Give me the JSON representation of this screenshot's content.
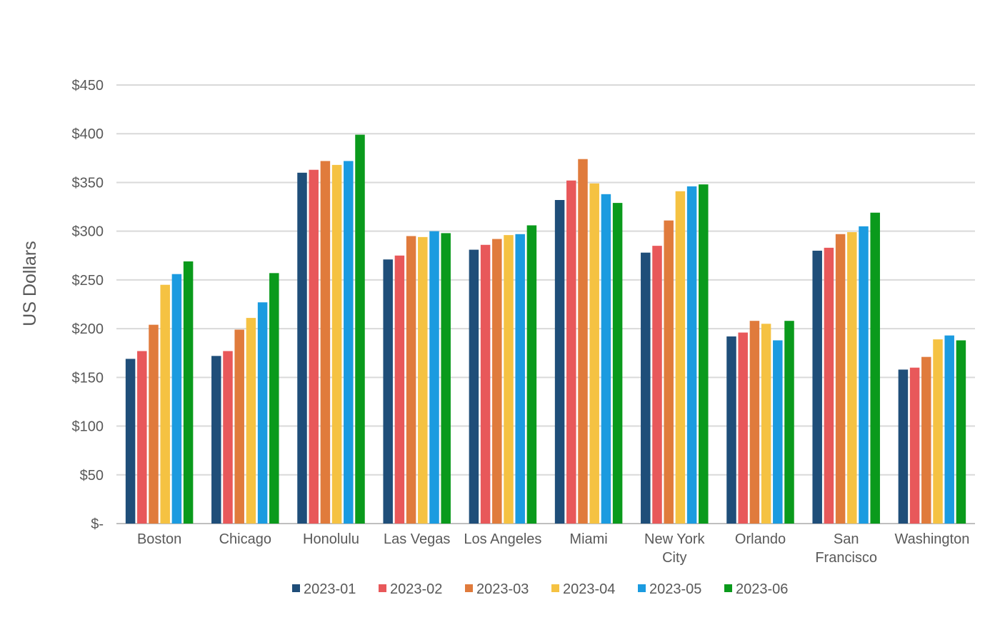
{
  "chart_data": {
    "type": "bar",
    "title": "",
    "xlabel": "",
    "ylabel": "US Dollars",
    "ylim": [
      0,
      450
    ],
    "y_ticks": [
      {
        "value": 0,
        "label": "$-"
      },
      {
        "value": 50,
        "label": "$50"
      },
      {
        "value": 100,
        "label": "$100"
      },
      {
        "value": 150,
        "label": "$150"
      },
      {
        "value": 200,
        "label": "$200"
      },
      {
        "value": 250,
        "label": "$250"
      },
      {
        "value": 300,
        "label": "$300"
      },
      {
        "value": 350,
        "label": "$350"
      },
      {
        "value": 400,
        "label": "$400"
      },
      {
        "value": 450,
        "label": "$450"
      }
    ],
    "grid": true,
    "legend_position": "bottom",
    "categories": [
      "Boston",
      "Chicago",
      "Honolulu",
      "Las Vegas",
      "Los Angeles",
      "Miami",
      "New York City",
      "Orlando",
      "San Francisco",
      "Washington"
    ],
    "category_label_lines": [
      [
        "Boston"
      ],
      [
        "Chicago"
      ],
      [
        "Honolulu"
      ],
      [
        "Las Vegas"
      ],
      [
        "Los Angeles"
      ],
      [
        "Miami"
      ],
      [
        "New York",
        "City"
      ],
      [
        "Orlando"
      ],
      [
        "San",
        "Francisco"
      ],
      [
        "Washington"
      ]
    ],
    "series": [
      {
        "name": "2023-01",
        "color": "#1f4e79",
        "values": [
          169,
          172,
          360,
          271,
          281,
          332,
          278,
          192,
          280,
          158
        ]
      },
      {
        "name": "2023-02",
        "color": "#e8585a",
        "values": [
          177,
          177,
          363,
          275,
          286,
          352,
          285,
          196,
          283,
          160
        ]
      },
      {
        "name": "2023-03",
        "color": "#e07b3c",
        "values": [
          204,
          199,
          372,
          295,
          292,
          374,
          311,
          208,
          297,
          171
        ]
      },
      {
        "name": "2023-04",
        "color": "#f5c242",
        "values": [
          245,
          211,
          368,
          294,
          296,
          349,
          341,
          205,
          299,
          189
        ]
      },
      {
        "name": "2023-05",
        "color": "#1b9be0",
        "values": [
          256,
          227,
          372,
          300,
          297,
          338,
          346,
          188,
          305,
          193
        ]
      },
      {
        "name": "2023-06",
        "color": "#0a9a1c",
        "values": [
          269,
          257,
          399,
          298,
          306,
          329,
          348,
          208,
          319,
          188
        ]
      }
    ],
    "gridline_color": "#d9d9d9"
  }
}
